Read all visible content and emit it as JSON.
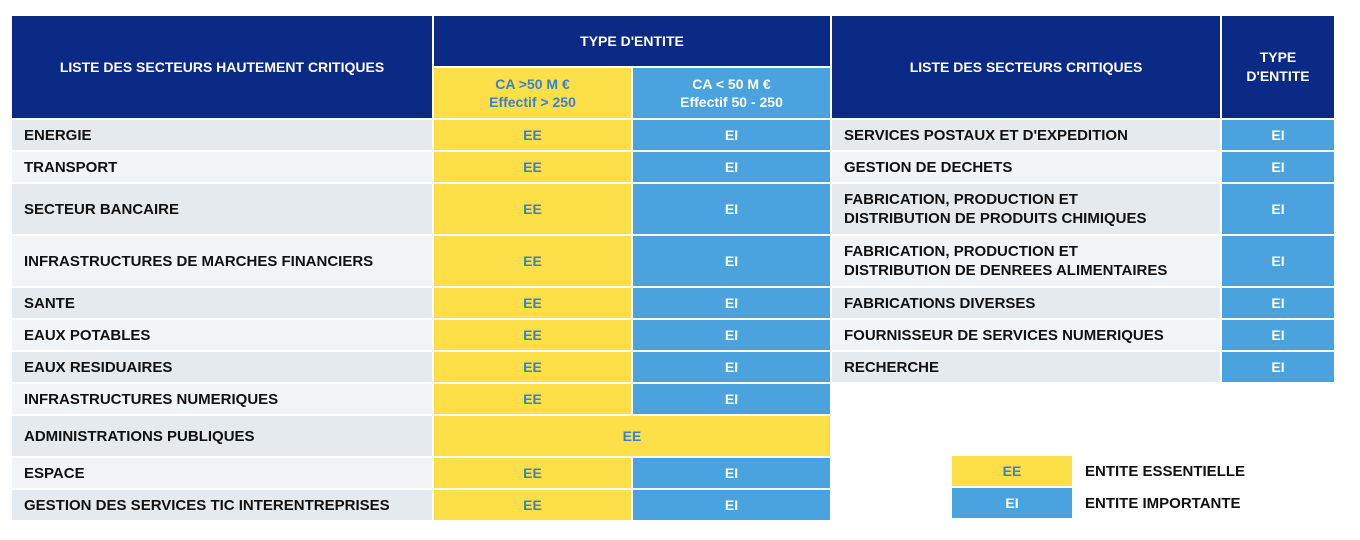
{
  "colors": {
    "header": "#0a2a85",
    "essential": "#fde047",
    "important": "#4aa3df",
    "row_dark": "#e5eaee",
    "row_light": "#f2f5f8"
  },
  "left": {
    "header": "LISTE DES SECTEURS HAUTEMENT CRITIQUES",
    "type_header": "TYPE D'ENTITE",
    "col_ee": {
      "line1": "CA >50 M €",
      "line2": "Effectif > 250"
    },
    "col_ei": {
      "line1": "CA < 50 M €",
      "line2": "Effectif 50 - 250"
    },
    "rows": [
      {
        "label": "ENERGIE",
        "ee": "EE",
        "ei": "EI"
      },
      {
        "label": "TRANSPORT",
        "ee": "EE",
        "ei": "EI"
      },
      {
        "label": "SECTEUR BANCAIRE",
        "ee": "EE",
        "ei": "EI"
      },
      {
        "label": "INFRASTRUCTURES DE MARCHES FINANCIERS",
        "ee": "EE",
        "ei": "EI"
      },
      {
        "label": "SANTE",
        "ee": "EE",
        "ei": "EI"
      },
      {
        "label": "EAUX POTABLES",
        "ee": "EE",
        "ei": "EI"
      },
      {
        "label": "EAUX RESIDUAIRES",
        "ee": "EE",
        "ei": "EI"
      },
      {
        "label": "INFRASTRUCTURES NUMERIQUES",
        "ee": "EE",
        "ei": "EI"
      },
      {
        "label": "ADMINISTRATIONS PUBLIQUES",
        "merged": "EE"
      },
      {
        "label": "ESPACE",
        "ee": "EE",
        "ei": "EI"
      },
      {
        "label": "GESTION DES SERVICES TIC INTERENTREPRISES",
        "ee": "EE",
        "ei": "EI"
      }
    ]
  },
  "right": {
    "header": "LISTE DES SECTEURS CRITIQUES",
    "type_header_line1": "TYPE",
    "type_header_line2": "D'ENTITE",
    "rows": [
      {
        "line1": "SERVICES POSTAUX ET D'EXPEDITION",
        "value": "EI"
      },
      {
        "line1": "GESTION DE DECHETS",
        "value": "EI"
      },
      {
        "line1": "FABRICATION, PRODUCTION ET",
        "line2": "DISTRIBUTION DE PRODUITS CHIMIQUES",
        "value": "EI"
      },
      {
        "line1": "FABRICATION, PRODUCTION ET",
        "line2": "DISTRIBUTION DE DENREES ALIMENTAIRES",
        "value": "EI"
      },
      {
        "line1": "FABRICATIONS DIVERSES",
        "value": "EI"
      },
      {
        "line1": "FOURNISSEUR DE SERVICES NUMERIQUES",
        "value": "EI"
      },
      {
        "line1": "RECHERCHE",
        "value": "EI"
      }
    ]
  },
  "legend": [
    {
      "code": "EE",
      "label": "ENTITE ESSENTIELLE"
    },
    {
      "code": "EI",
      "label": "ENTITE IMPORTANTE"
    }
  ]
}
